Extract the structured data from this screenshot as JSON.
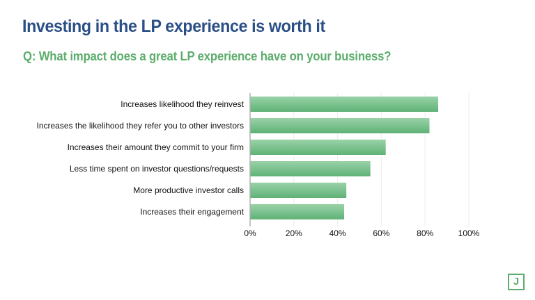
{
  "slide": {
    "title": "Investing in the LP experience is worth it",
    "subtitle": "Q: What impact does a great LP experience have on your business?",
    "logo_text": "J"
  },
  "colors": {
    "title": "#2a4f86",
    "accent": "#5cad6c",
    "bar_top": "#9ad2a8",
    "bar_bottom": "#5fb277",
    "grid": "#ececec",
    "axis": "#b0b0b0"
  },
  "chart_data": {
    "type": "bar",
    "orientation": "horizontal",
    "title": "Q: What impact does a great LP experience have on your business?",
    "xlabel": "",
    "ylabel": "",
    "categories": [
      "Increases likelihood they reinvest",
      "Increases the likelihood they refer you to other investors",
      "Increases their amount they commit to your firm",
      "Less time spent on investor questions/requests",
      "More productive investor calls",
      "Increases their engagement"
    ],
    "values": [
      86,
      82,
      62,
      55,
      44,
      43
    ],
    "unit": "%",
    "xlim": [
      0,
      100
    ],
    "xticks": [
      0,
      20,
      40,
      60,
      80,
      100
    ],
    "xtick_labels": [
      "0%",
      "20%",
      "40%",
      "60%",
      "80%",
      "100%"
    ],
    "grid": true,
    "legend": "none"
  }
}
